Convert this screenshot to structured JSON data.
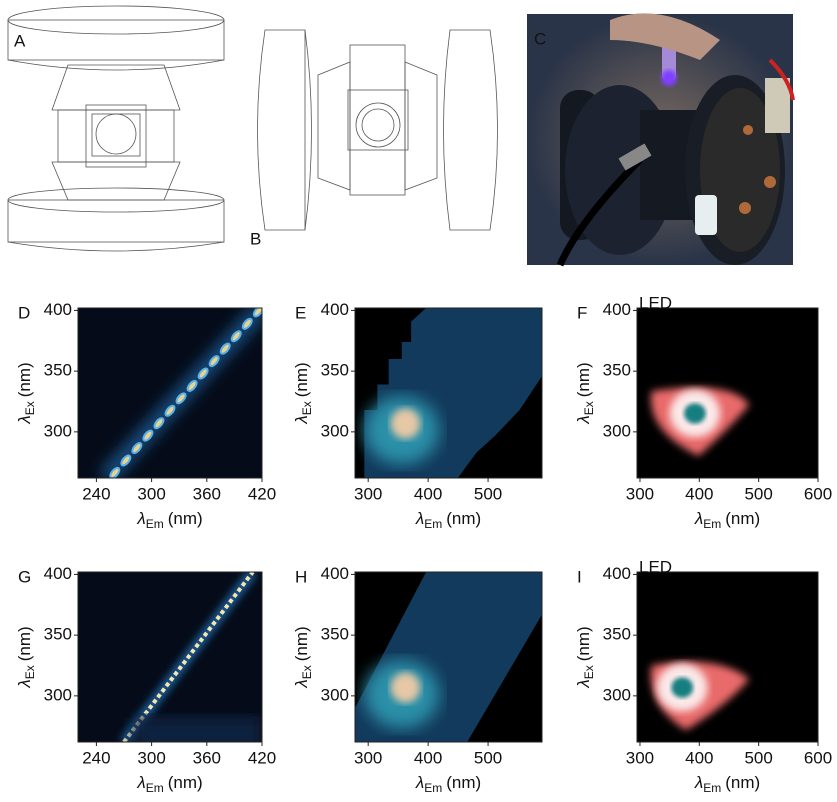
{
  "panels": [
    {
      "label": "A"
    },
    {
      "label": "B"
    },
    {
      "label": "C"
    }
  ],
  "plots": [
    {
      "label": "D",
      "kind": "spots",
      "xlim": [
        220,
        420
      ],
      "ylim": [
        262,
        402
      ],
      "xticks": [
        240,
        300,
        360,
        420
      ],
      "yticks": [
        300,
        350,
        400
      ],
      "xlabel": {
        "symbol": "λ",
        "sub": "Em",
        "unit": "(nm)"
      },
      "ylabel": {
        "symbol": "λ",
        "sub": "Ex",
        "unit": "(nm)"
      }
    },
    {
      "label": "E",
      "kind": "band",
      "xlim": [
        278,
        590
      ],
      "ylim": [
        262,
        402
      ],
      "xticks": [
        300,
        400,
        500
      ],
      "yticks": [
        300,
        350,
        400
      ],
      "xlabel": {
        "symbol": "λ",
        "sub": "Em",
        "unit": "(nm)"
      },
      "ylabel": {
        "symbol": "λ",
        "sub": "Ex",
        "unit": "(nm)"
      }
    },
    {
      "label": "F",
      "kind": "blob",
      "note": "LED",
      "xlim": [
        295,
        600
      ],
      "ylim": [
        262,
        402
      ],
      "xticks": [
        300,
        400,
        500,
        600
      ],
      "yticks": [
        300,
        350,
        400
      ],
      "xlabel": {
        "symbol": "λ",
        "sub": "Em",
        "unit": "(nm)"
      },
      "ylabel": {
        "symbol": "λ",
        "sub": "Ex",
        "unit": "(nm)"
      }
    },
    {
      "label": "G",
      "kind": "line",
      "xlim": [
        220,
        420
      ],
      "ylim": [
        262,
        402
      ],
      "xticks": [
        240,
        300,
        360,
        420
      ],
      "yticks": [
        300,
        350,
        400
      ],
      "xlabel": {
        "symbol": "λ",
        "sub": "Em",
        "unit": "(nm)"
      },
      "ylabel": {
        "symbol": "λ",
        "sub": "Ex",
        "unit": "(nm)"
      }
    },
    {
      "label": "H",
      "kind": "band2",
      "xlim": [
        278,
        590
      ],
      "ylim": [
        262,
        402
      ],
      "xticks": [
        300,
        400,
        500
      ],
      "yticks": [
        300,
        350,
        400
      ],
      "xlabel": {
        "symbol": "λ",
        "sub": "Em",
        "unit": "(nm)"
      },
      "ylabel": {
        "symbol": "λ",
        "sub": "Ex",
        "unit": "(nm)"
      }
    },
    {
      "label": "I",
      "kind": "blob2",
      "note": "LED",
      "xlim": [
        295,
        600
      ],
      "ylim": [
        262,
        402
      ],
      "xticks": [
        300,
        400,
        500,
        600
      ],
      "yticks": [
        300,
        350,
        400
      ],
      "xlabel": {
        "symbol": "λ",
        "sub": "Em",
        "unit": "(nm)"
      },
      "ylabel": {
        "symbol": "λ",
        "sub": "Ex",
        "unit": "(nm)"
      }
    }
  ]
}
